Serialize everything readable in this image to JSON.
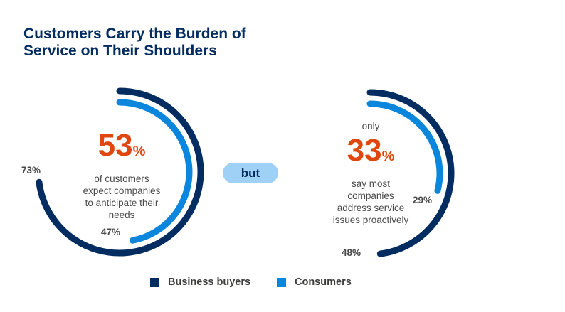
{
  "title": {
    "line1": "Customers Carry the Burden of",
    "line2": "Service on Their Shoulders"
  },
  "colors": {
    "business_buyers": "#032d60",
    "consumers": "#0b86dd",
    "highlight": "#e0470e",
    "pill": "#9fd0f5"
  },
  "chart_data": [
    {
      "type": "radial-bar",
      "title": "53% of customers expect companies to anticipate their needs",
      "series": [
        {
          "name": "Business buyers",
          "value": 73,
          "label": "73%"
        },
        {
          "name": "Consumers",
          "value": 47,
          "label": "47%"
        }
      ],
      "headline": {
        "number": "53",
        "unit": "%",
        "caption": [
          "of customers",
          "expect companies",
          "to anticipate their",
          "needs"
        ]
      }
    },
    {
      "type": "radial-bar",
      "title": "only 33% say most companies address service issues proactively",
      "series": [
        {
          "name": "Business buyers",
          "value": 48,
          "label": "48%"
        },
        {
          "name": "Consumers",
          "value": 29,
          "label": "29%"
        }
      ],
      "headline": {
        "prefix": "only",
        "number": "33",
        "unit": "%",
        "caption": [
          "say most",
          "companies",
          "address service",
          "issues proactively"
        ]
      }
    }
  ],
  "connector": "but",
  "legend": [
    {
      "label": "Business buyers",
      "color": "#032d60"
    },
    {
      "label": "Consumers",
      "color": "#0b86dd"
    }
  ]
}
